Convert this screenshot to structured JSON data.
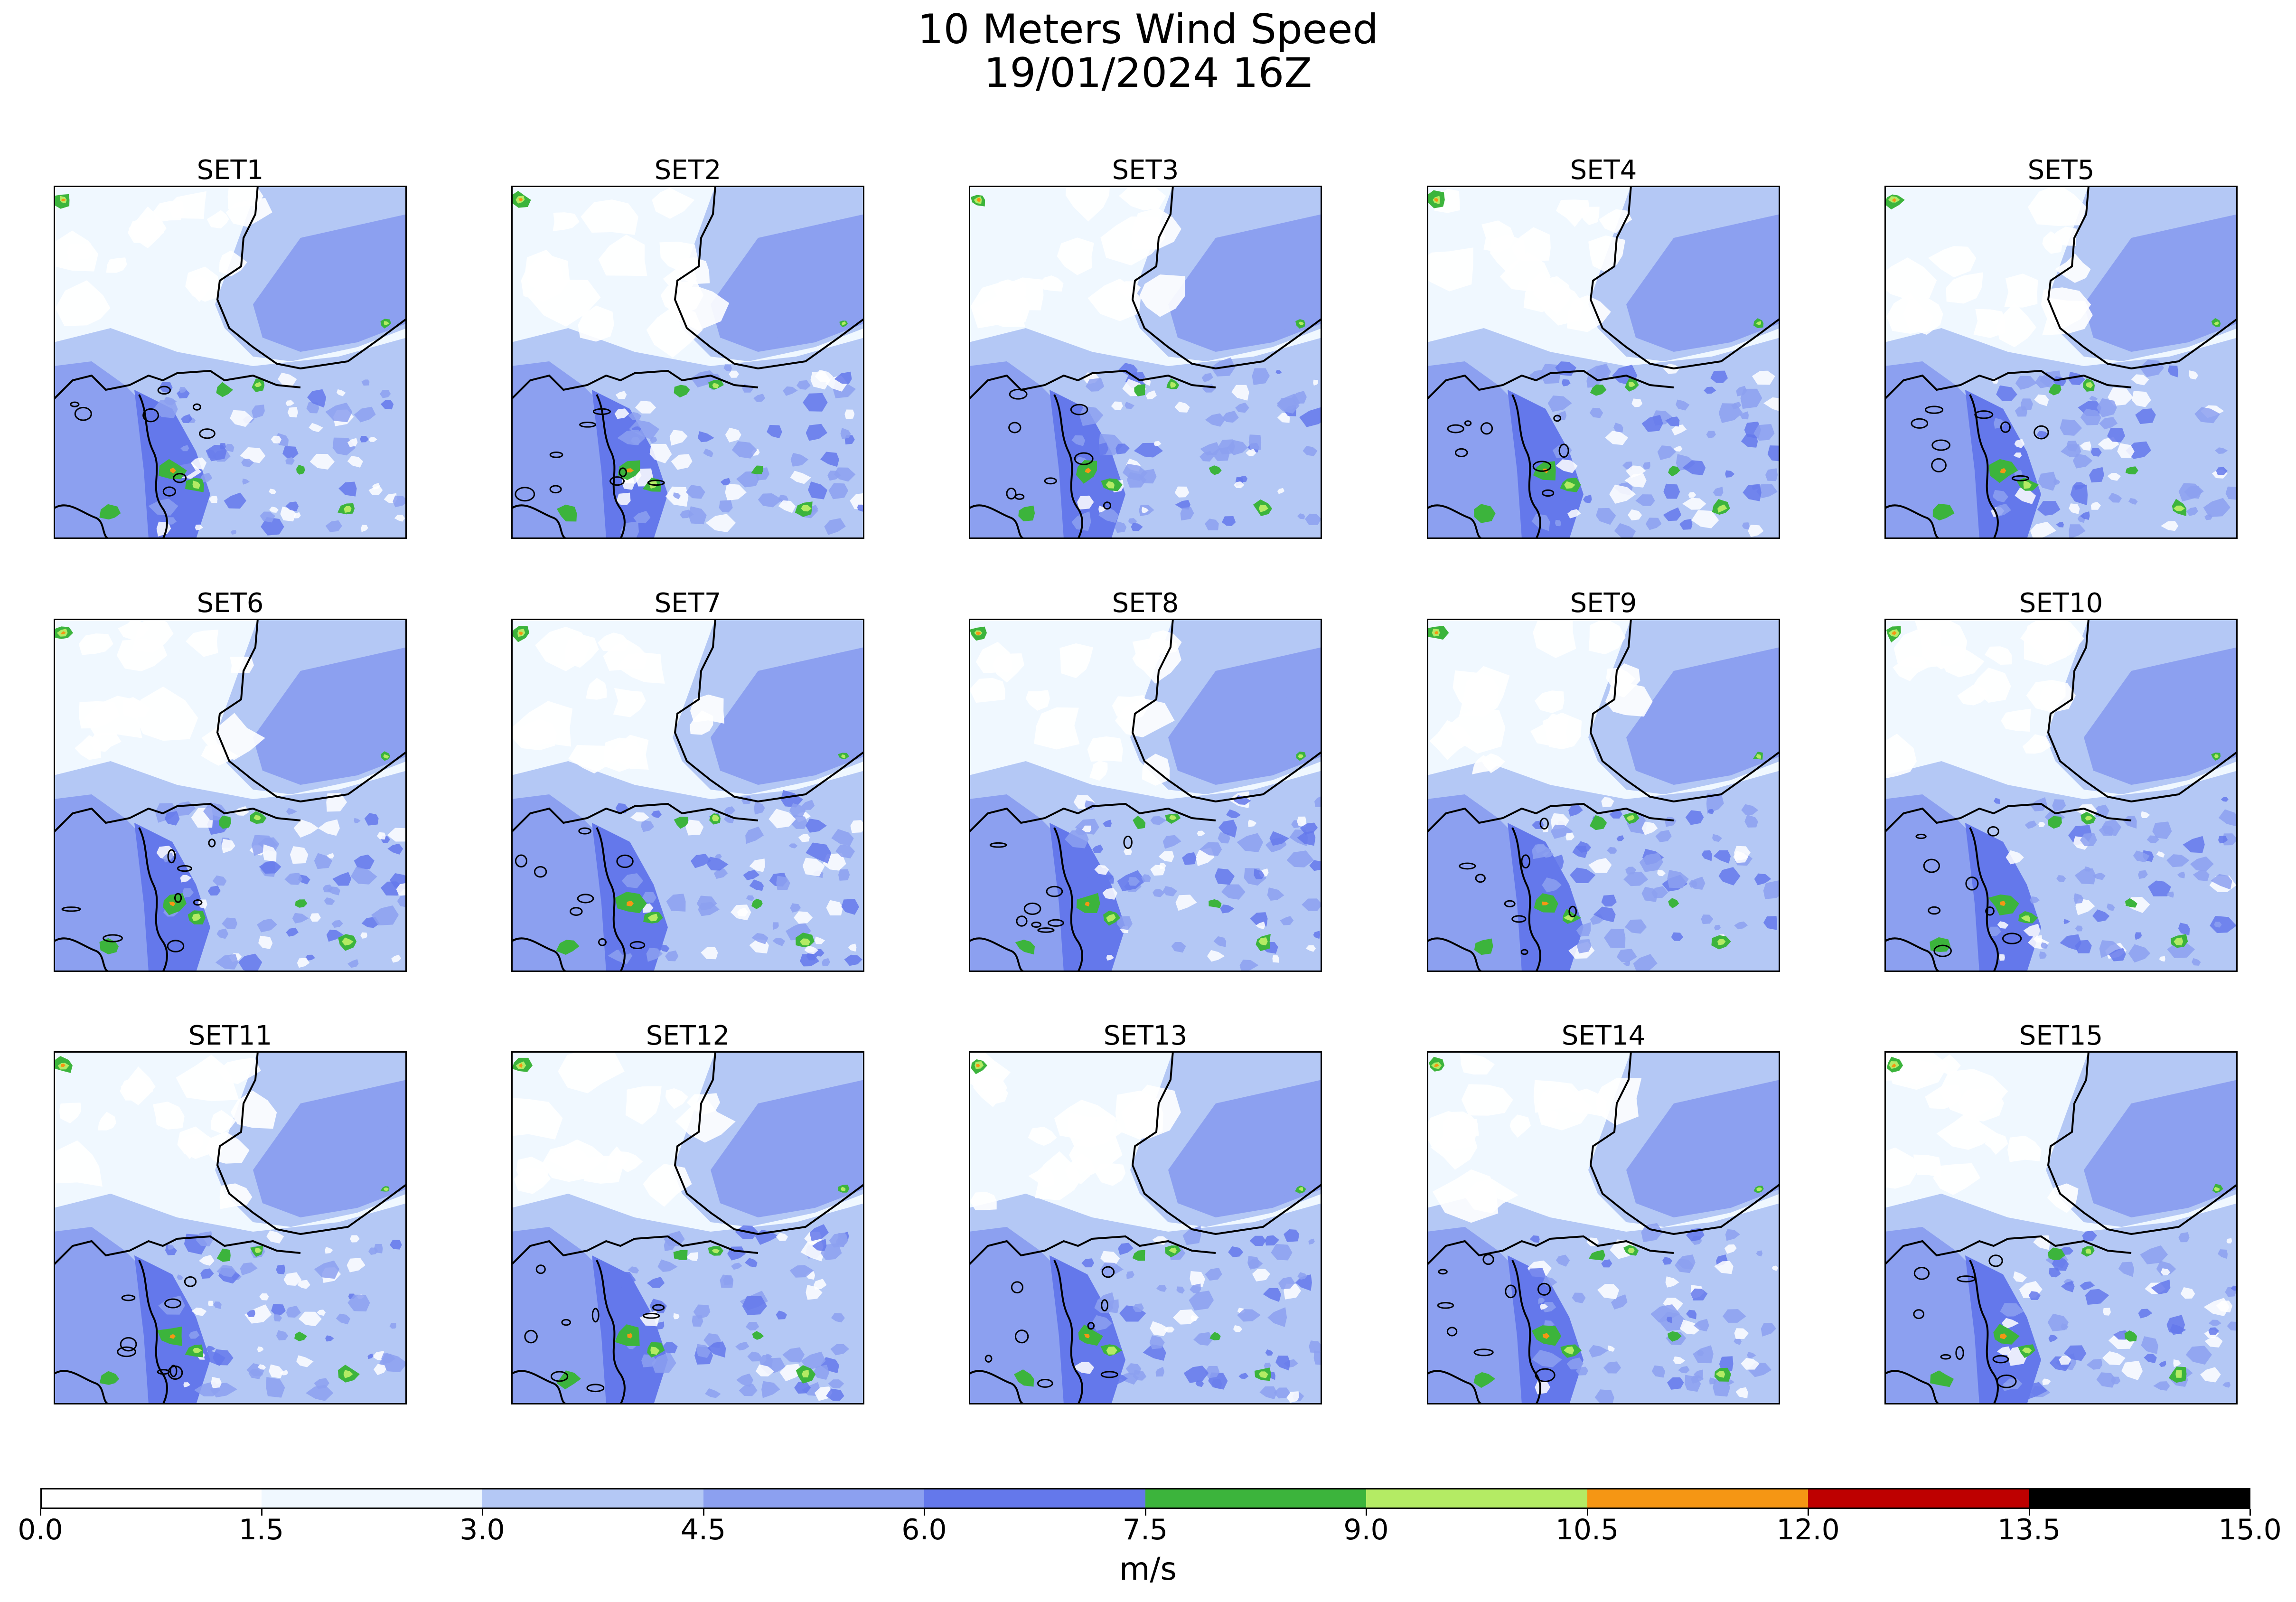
{
  "title": {
    "line1": "10 Meters Wind Speed",
    "line2": "19/01/2024 16Z"
  },
  "panels": [
    {
      "label": "SET1"
    },
    {
      "label": "SET2"
    },
    {
      "label": "SET3"
    },
    {
      "label": "SET4"
    },
    {
      "label": "SET5"
    },
    {
      "label": "SET6"
    },
    {
      "label": "SET7"
    },
    {
      "label": "SET8"
    },
    {
      "label": "SET9"
    },
    {
      "label": "SET10"
    },
    {
      "label": "SET11"
    },
    {
      "label": "SET12"
    },
    {
      "label": "SET13"
    },
    {
      "label": "SET14"
    },
    {
      "label": "SET15"
    }
  ],
  "colorbar": {
    "unit": "m/s",
    "bounds": [
      "0.0",
      "1.5",
      "3.0",
      "4.5",
      "6.0",
      "7.5",
      "9.0",
      "10.5",
      "12.0",
      "13.5",
      "15.0"
    ],
    "colors": [
      "#ffffff",
      "#f0f8ff",
      "#b4c8f5",
      "#8ca0f0",
      "#6478eb",
      "#3cb43c",
      "#b4eb64",
      "#f59614",
      "#be0000",
      "#000000"
    ]
  }
}
